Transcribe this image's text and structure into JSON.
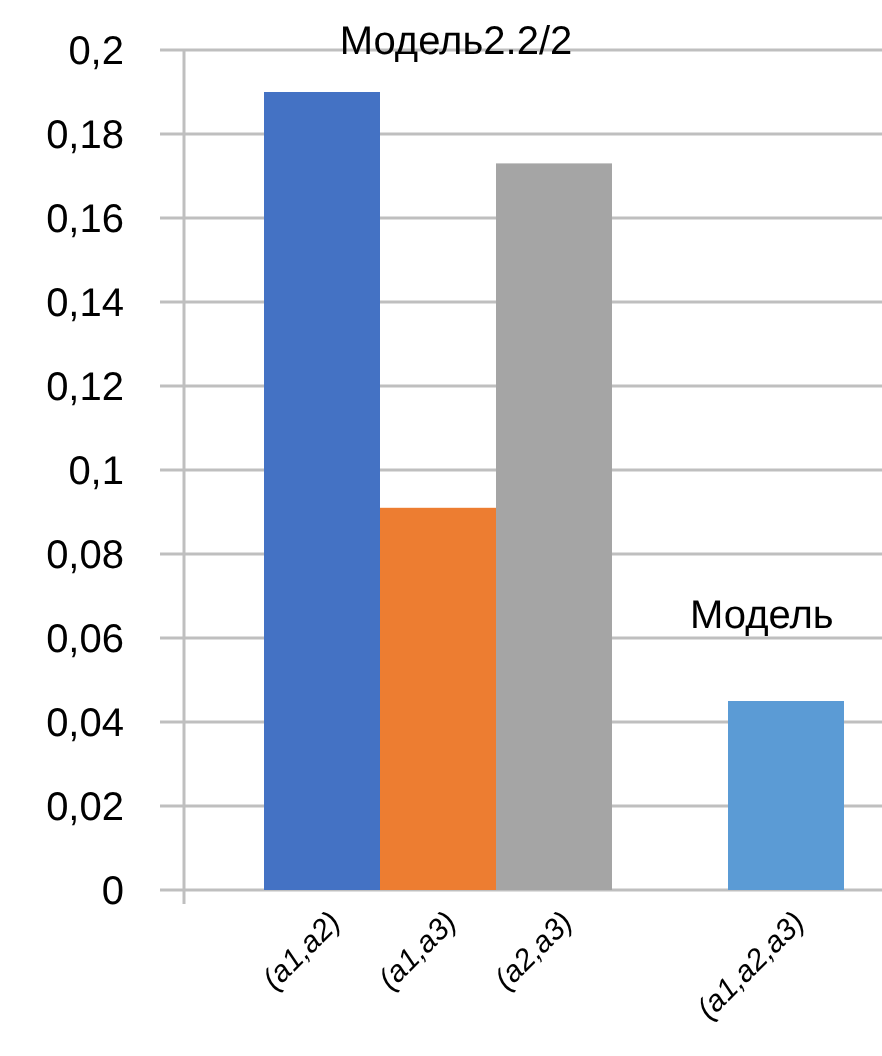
{
  "chart_data": {
    "type": "bar",
    "categories": [
      "(a1,a2)",
      "(a1,a3)",
      "(a2,a3)",
      null,
      "(a1,a2,a3)"
    ],
    "values": [
      0.19,
      0.091,
      0.173,
      null,
      0.045
    ],
    "colors": [
      "#4472c4",
      "#ed7d31",
      "#a5a5a5",
      null,
      "#5b9bd5"
    ],
    "ylim": [
      0,
      0.2
    ],
    "yticks": [
      {
        "value": 0,
        "label": "0"
      },
      {
        "value": 0.02,
        "label": "0,02"
      },
      {
        "value": 0.04,
        "label": "0,04"
      },
      {
        "value": 0.06,
        "label": "0,06"
      },
      {
        "value": 0.08,
        "label": "0,08"
      },
      {
        "value": 0.1,
        "label": "0,1"
      },
      {
        "value": 0.12,
        "label": "0,12"
      },
      {
        "value": 0.14,
        "label": "0,14"
      },
      {
        "value": 0.16,
        "label": "0,16"
      },
      {
        "value": 0.18,
        "label": "0,18"
      },
      {
        "value": 0.2,
        "label": "0,2"
      }
    ],
    "grid": "y",
    "annotations": [
      "Модель2.2/2",
      "Модель"
    ]
  }
}
